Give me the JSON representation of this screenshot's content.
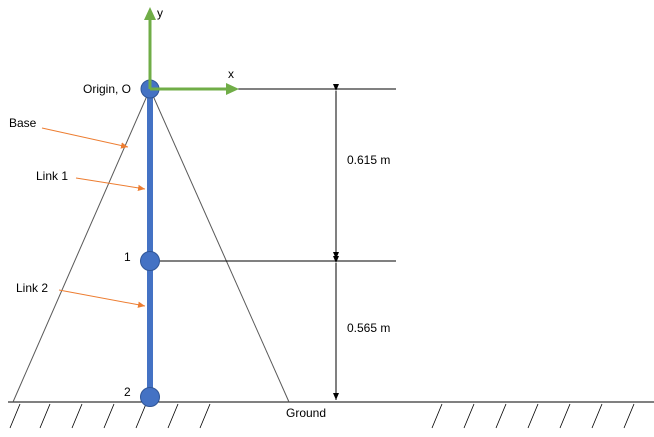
{
  "labels": {
    "origin": "Origin, O",
    "x_axis": "x",
    "y_axis": "y",
    "base": "Base",
    "link1": "Link 1",
    "link2": "Link 2",
    "joint1": "1",
    "joint2": "2",
    "ground": "Ground",
    "dim_upper": "0.615 m",
    "dim_lower": "0.565 m"
  },
  "colors": {
    "link": "#4472c4",
    "joint_fill": "#4472c4",
    "joint_stroke": "#2f5597",
    "axis": "#70ad47",
    "leader": "#ed7d31",
    "line": "#000000",
    "base_line": "#595959"
  }
}
